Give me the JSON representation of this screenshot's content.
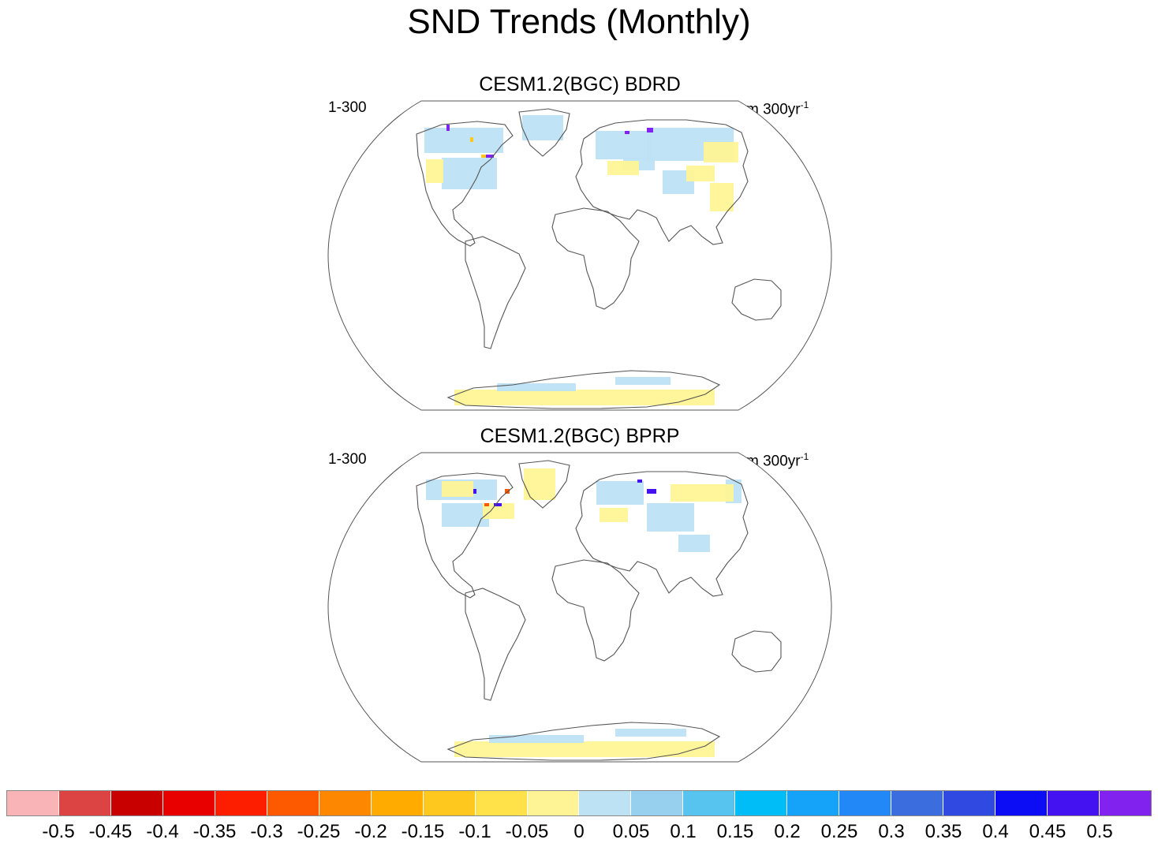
{
  "title": "SND Trends (Monthly)",
  "panels": [
    {
      "title": "CESM1.2(BGC) BDRD",
      "left_label": "1-300",
      "units": "m 300yr",
      "units_exp": "-1"
    },
    {
      "title": "CESM1.2(BGC) BPRP",
      "left_label": "1-300",
      "units": "m 300yr",
      "units_exp": "-1"
    }
  ],
  "colorbar": {
    "colors": [
      "#f9b4b8",
      "#dc4343",
      "#c80000",
      "#e80000",
      "#fd1e00",
      "#fd5a00",
      "#fe8700",
      "#ffab00",
      "#ffc81e",
      "#ffe14a",
      "#fff495",
      "#bde2f4",
      "#97cfef",
      "#57c4f0",
      "#00bdf7",
      "#14a3f9",
      "#2288f8",
      "#3b6ddf",
      "#2f49e1",
      "#0c0cf5",
      "#4412f0",
      "#8122ee"
    ],
    "labels": [
      "-0.5",
      "-0.45",
      "-0.4",
      "-0.35",
      "-0.3",
      "-0.25",
      "-0.2",
      "-0.15",
      "-0.1",
      "-0.05",
      "0",
      "0.05",
      "0.1",
      "0.15",
      "0.2",
      "0.25",
      "0.3",
      "0.35",
      "0.4",
      "0.45",
      "0.5"
    ]
  }
}
